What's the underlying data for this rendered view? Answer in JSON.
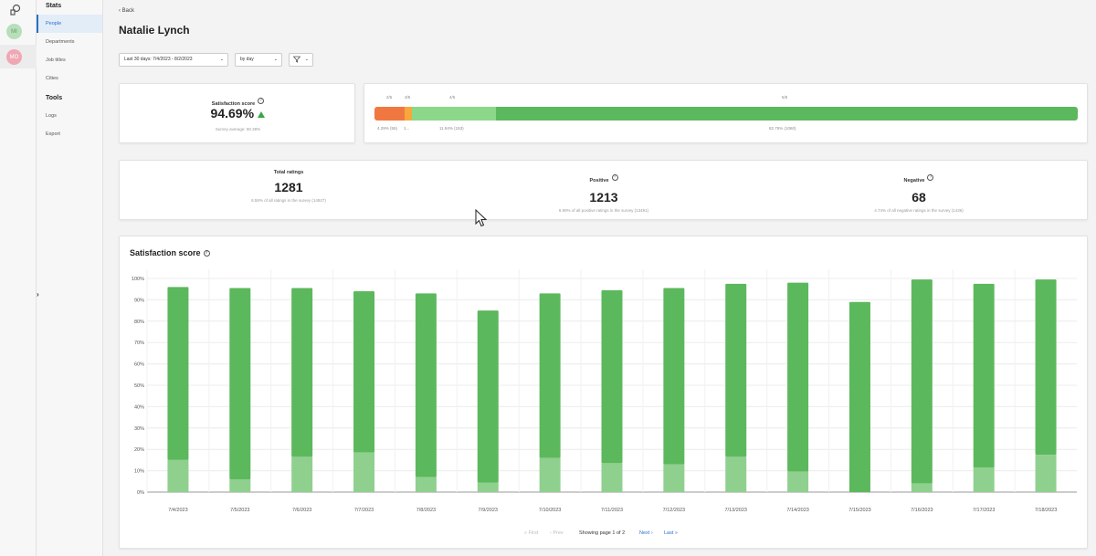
{
  "rail": {
    "avatars": [
      "MI",
      "MO"
    ]
  },
  "nav": {
    "section_stats": "Stats",
    "items_stats": [
      "People",
      "Departments",
      "Job titles",
      "Cities"
    ],
    "section_tools": "Tools",
    "items_tools": [
      "Logs",
      "Export"
    ],
    "collapse_glyph": "›"
  },
  "header": {
    "back_label": "Back",
    "title": "Natalie Lynch"
  },
  "filters": {
    "date_range": "Last 30 days: 7/4/2023 - 8/2/2023",
    "group_by": "by day"
  },
  "satisfaction": {
    "label": "Satisfaction score",
    "value": "94.69%",
    "survey_average": "Survey average: 90.38%",
    "trend_color": "#3aa548"
  },
  "distribution": {
    "segments": [
      {
        "top_label": "2/5",
        "bottom_label": "4.29% (55)",
        "share": 4.29,
        "color": "#f07840"
      },
      {
        "top_label": "3/5",
        "bottom_label": "1...",
        "share": 1.02,
        "color": "#f6a83c"
      },
      {
        "top_label": "4/5",
        "bottom_label": "11.94% (153)",
        "share": 11.94,
        "color": "#8bd88b"
      },
      {
        "top_label": "5/5",
        "bottom_label": "82.75% (1060)",
        "share": 82.75,
        "color": "#5cb85c"
      }
    ]
  },
  "totals": {
    "total": {
      "label": "Total ratings",
      "value": "1281",
      "note": "8.58% of all ratings in the survey (14927)"
    },
    "positive": {
      "label": "Positive",
      "value": "1213",
      "note": "8.99% of all positive ratings in the survey (13491)"
    },
    "negative": {
      "label": "Negative",
      "value": "68",
      "note": "4.74% of all negative ratings in the survey (1436)"
    }
  },
  "chart_section": {
    "title": "Satisfaction score"
  },
  "chart_data": {
    "type": "bar",
    "categories": [
      "7/4/2023",
      "7/5/2023",
      "7/6/2023",
      "7/7/2023",
      "7/8/2023",
      "7/9/2023",
      "7/10/2023",
      "7/11/2023",
      "7/12/2023",
      "7/13/2023",
      "7/14/2023",
      "7/15/2023",
      "7/16/2023",
      "7/17/2023",
      "7/18/2023"
    ],
    "values": [
      96,
      95.5,
      95.5,
      94,
      93,
      85,
      93,
      94.5,
      95.5,
      97.5,
      98,
      89,
      99.5,
      97.5,
      99.5
    ],
    "lower_values": [
      15,
      6,
      16.5,
      18.5,
      7,
      4.5,
      16,
      13.5,
      13,
      16.5,
      9.5,
      0,
      4,
      11.5,
      17.5
    ],
    "yticks": [
      "100%",
      "90%",
      "80%",
      "70%",
      "60%",
      "50%",
      "40%",
      "30%",
      "20%",
      "10%",
      "0%"
    ],
    "ylim": [
      0,
      100
    ],
    "colors": {
      "upper": "#5cb85c",
      "lower": "#8fd08f"
    }
  },
  "pager": {
    "first": "« First",
    "prev": "‹ Prev",
    "status": "Showing page 1 of 2",
    "next": "Next ›",
    "last": "Last »"
  }
}
